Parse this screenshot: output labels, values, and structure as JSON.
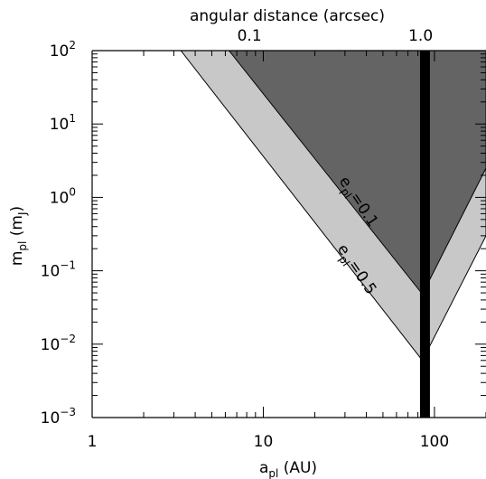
{
  "chart_data": {
    "type": "area",
    "title": "",
    "xlabel": {
      "main": "a",
      "sub": "pl",
      "unit": " (AU)"
    },
    "ylabel": {
      "main": "m",
      "sub": "pl",
      "unit_open": " (m",
      "unit_sub": "J",
      "unit_close": ")"
    },
    "top_axis_label": "angular distance (arcsec)",
    "x_scale": "log",
    "y_scale": "log",
    "xlim": [
      1,
      200
    ],
    "ylim": [
      0.001,
      100
    ],
    "x_ticks": [
      {
        "value": 1,
        "label": "1"
      },
      {
        "value": 10,
        "label": "10"
      },
      {
        "value": 100,
        "label": "100"
      }
    ],
    "y_ticks": [
      {
        "value": 0.001,
        "base": "10",
        "exp": "−3"
      },
      {
        "value": 0.01,
        "base": "10",
        "exp": "−2"
      },
      {
        "value": 0.1,
        "base": "10",
        "exp": "−1"
      },
      {
        "value": 1,
        "base": "10",
        "exp": "0"
      },
      {
        "value": 10,
        "base": "10",
        "exp": "1"
      },
      {
        "value": 100,
        "base": "10",
        "exp": "2"
      }
    ],
    "top_ticks": [
      {
        "a_au": 8.3,
        "label": "0.1"
      },
      {
        "a_au": 83,
        "label": "1.0"
      }
    ],
    "series": [
      {
        "name": "e_pl = 0.5",
        "label_main": "e",
        "label_sub": "pl",
        "label_rest": "=0.5",
        "color": "#c8c8c8",
        "polygon": [
          [
            3.3,
            100
          ],
          [
            85,
            0.006
          ],
          [
            200,
            0.3
          ],
          [
            200,
            100
          ]
        ]
      },
      {
        "name": "e_pl = 0.1",
        "label_main": "e",
        "label_sub": "pl",
        "label_rest": "=0.1",
        "color": "#646464",
        "polygon": [
          [
            6.3,
            100
          ],
          [
            85,
            0.048
          ],
          [
            200,
            2.5
          ],
          [
            200,
            100
          ]
        ]
      }
    ],
    "vertical_line": {
      "x": 88,
      "color": "#000000"
    },
    "grid": false,
    "legend": "none"
  }
}
